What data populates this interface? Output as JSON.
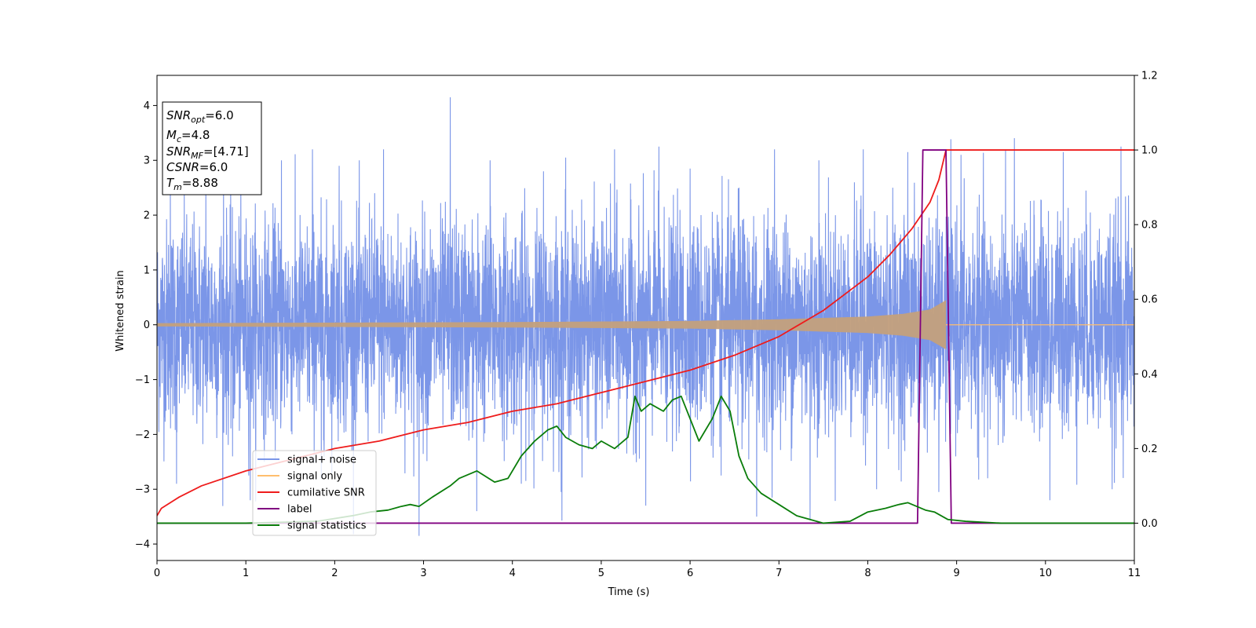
{
  "chart_data": {
    "type": "line",
    "xlabel": "Time (s)",
    "ylabel": "Whitened strain",
    "xlim": [
      0,
      11
    ],
    "ylim": [
      -4.3,
      4.55
    ],
    "y2lim": [
      -0.1,
      1.2
    ],
    "x_ticks": [
      0,
      1,
      2,
      3,
      4,
      5,
      6,
      7,
      8,
      9,
      10,
      11
    ],
    "x_tick_labels": [
      "0",
      "1",
      "2",
      "3",
      "4",
      "5",
      "6",
      "7",
      "8",
      "9",
      "10",
      "11"
    ],
    "y_ticks": [
      -4,
      -3,
      -2,
      -1,
      0,
      1,
      2,
      3,
      4
    ],
    "y_tick_labels": [
      "−4",
      "−3",
      "−2",
      "−1",
      "0",
      "1",
      "2",
      "3",
      "4"
    ],
    "y2_ticks": [
      0.0,
      0.2,
      0.4,
      0.6,
      0.8,
      1.0,
      1.2
    ],
    "y2_tick_labels": [
      "0.0",
      "0.2",
      "0.4",
      "0.6",
      "0.8",
      "1.0",
      "1.2"
    ],
    "grid": false,
    "legend_position": "lower-left",
    "annotation_box": {
      "lines": [
        {
          "var": "SNR",
          "sub": "opt",
          "value": "=6.0"
        },
        {
          "var": "M",
          "sub": "c",
          "value": "=4.8"
        },
        {
          "var": "SNR",
          "sub": "MF",
          "value": "=[4.71]"
        },
        {
          "var": "CSNR",
          "sub": "",
          "value": "=6.0"
        },
        {
          "var": "T",
          "sub": "m",
          "value": "=8.88"
        }
      ]
    },
    "series": [
      {
        "name": "signal+ noise",
        "axis": "left",
        "color": "#7b96e8",
        "style": "dense noise band approx. ±1.3 std with spikes to ±3.2",
        "spikes": [
          {
            "x": 0.15,
            "y": 2.9
          },
          {
            "x": 0.55,
            "y": 2.7
          },
          {
            "x": 0.75,
            "y": 2.6
          },
          {
            "x": 1.4,
            "y": 3.0
          },
          {
            "x": 1.75,
            "y": 3.2
          },
          {
            "x": 2.05,
            "y": 2.9
          },
          {
            "x": 2.45,
            "y": 2.4
          },
          {
            "x": 2.55,
            "y": 3.2
          },
          {
            "x": 3.3,
            "y": 4.15
          },
          {
            "x": 3.75,
            "y": 3.0
          },
          {
            "x": 4.35,
            "y": 2.8
          },
          {
            "x": 4.6,
            "y": 3.05
          },
          {
            "x": 5.15,
            "y": 3.2
          },
          {
            "x": 5.65,
            "y": 3.25
          },
          {
            "x": 6.0,
            "y": 2.85
          },
          {
            "x": 6.55,
            "y": 2.5
          },
          {
            "x": 6.95,
            "y": 3.2
          },
          {
            "x": 7.45,
            "y": 3.0
          },
          {
            "x": 7.95,
            "y": 3.2
          },
          {
            "x": 8.45,
            "y": 3.15
          },
          {
            "x": 9.05,
            "y": 3.1
          },
          {
            "x": 9.55,
            "y": 3.2
          },
          {
            "x": 10.2,
            "y": 3.15
          },
          {
            "x": 10.85,
            "y": 3.25
          },
          {
            "x": 0.22,
            "y": -2.9
          },
          {
            "x": 0.85,
            "y": -2.4
          },
          {
            "x": 1.05,
            "y": -3.2
          },
          {
            "x": 1.85,
            "y": -2.8
          },
          {
            "x": 2.95,
            "y": -3.85
          },
          {
            "x": 3.6,
            "y": -3.4
          },
          {
            "x": 4.1,
            "y": -2.9
          },
          {
            "x": 4.55,
            "y": -3.05
          },
          {
            "x": 5.5,
            "y": -3.3
          },
          {
            "x": 6.35,
            "y": -2.75
          },
          {
            "x": 6.75,
            "y": -3.5
          },
          {
            "x": 7.35,
            "y": -3.55
          },
          {
            "x": 8.1,
            "y": -3.0
          },
          {
            "x": 8.8,
            "y": -3.05
          },
          {
            "x": 9.35,
            "y": -2.8
          },
          {
            "x": 10.05,
            "y": -3.2
          },
          {
            "x": 10.75,
            "y": -3.0
          }
        ]
      },
      {
        "name": "signal only",
        "axis": "left",
        "color": "#ffbe6e",
        "style": "chirp envelope",
        "envelope": {
          "x": [
            0,
            2,
            4,
            6,
            7,
            8,
            8.4,
            8.7,
            8.85,
            8.88
          ],
          "amp": [
            0.03,
            0.04,
            0.05,
            0.07,
            0.1,
            0.15,
            0.2,
            0.28,
            0.42,
            0.45
          ]
        },
        "merger_time": 8.88
      },
      {
        "name": "cumilative SNR",
        "axis": "right",
        "color": "#ee1c1c",
        "x": [
          0,
          0.05,
          0.25,
          0.5,
          1,
          1.5,
          2,
          2.5,
          3,
          3.5,
          4,
          4.5,
          5,
          5.5,
          6,
          6.5,
          7,
          7.5,
          8,
          8.25,
          8.5,
          8.7,
          8.8,
          8.88,
          9,
          10,
          11
        ],
        "values": [
          0.02,
          0.04,
          0.07,
          0.1,
          0.14,
          0.17,
          0.2,
          0.22,
          0.25,
          0.27,
          0.3,
          0.32,
          0.35,
          0.38,
          0.41,
          0.45,
          0.5,
          0.57,
          0.66,
          0.72,
          0.79,
          0.86,
          0.92,
          1.0,
          1.0,
          1.0,
          1.0
        ]
      },
      {
        "name": "label",
        "axis": "right",
        "color": "#800080",
        "x": [
          0,
          8.56,
          8.62,
          8.88,
          8.94,
          11
        ],
        "values": [
          0,
          0,
          1,
          1,
          0,
          0
        ]
      },
      {
        "name": "signal statistics",
        "axis": "right",
        "color": "#0a7d0a",
        "x": [
          0,
          1,
          1.8,
          2.2,
          2.4,
          2.6,
          2.75,
          2.85,
          2.95,
          3.1,
          3.3,
          3.4,
          3.6,
          3.8,
          3.95,
          4.1,
          4.25,
          4.4,
          4.5,
          4.6,
          4.75,
          4.9,
          5.0,
          5.15,
          5.3,
          5.38,
          5.45,
          5.55,
          5.7,
          5.8,
          5.9,
          6.0,
          6.1,
          6.25,
          6.35,
          6.45,
          6.55,
          6.65,
          6.8,
          7.0,
          7.2,
          7.5,
          7.8,
          8.0,
          8.2,
          8.35,
          8.45,
          8.55,
          8.65,
          8.75,
          8.9,
          9.1,
          9.5,
          11
        ],
        "values": [
          0.0,
          0.0,
          0.005,
          0.02,
          0.03,
          0.035,
          0.045,
          0.05,
          0.045,
          0.07,
          0.1,
          0.12,
          0.14,
          0.11,
          0.12,
          0.18,
          0.22,
          0.25,
          0.26,
          0.23,
          0.21,
          0.2,
          0.22,
          0.2,
          0.23,
          0.34,
          0.3,
          0.32,
          0.3,
          0.33,
          0.34,
          0.28,
          0.22,
          0.28,
          0.34,
          0.3,
          0.18,
          0.12,
          0.08,
          0.05,
          0.02,
          0.0,
          0.005,
          0.03,
          0.04,
          0.05,
          0.055,
          0.045,
          0.035,
          0.03,
          0.01,
          0.005,
          0.0,
          0.0
        ]
      }
    ]
  }
}
